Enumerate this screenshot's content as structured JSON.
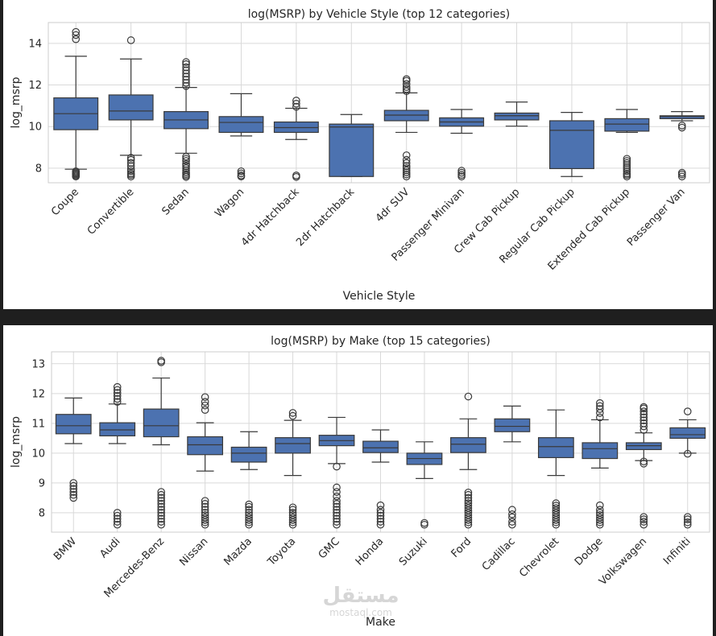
{
  "chart_data": [
    {
      "type": "box",
      "title": "log(MSRP) by Vehicle Style (top 12 categories)",
      "xlabel": "Vehicle Style",
      "ylabel": "log_msrp",
      "ylim": [
        7.3,
        15.0
      ],
      "yticks": [
        8,
        10,
        12,
        14
      ],
      "grid": true,
      "categories": [
        "Coupe",
        "Convertible",
        "Sedan",
        "Wagon",
        "4dr Hatchback",
        "2dr Hatchback",
        "4dr SUV",
        "Passenger Minivan",
        "Crew Cab Pickup",
        "Regular Cab Pickup",
        "Extended Cab Pickup",
        "Passenger Van"
      ],
      "boxes": [
        {
          "whislo": 7.95,
          "q1": 9.85,
          "med": 10.62,
          "q3": 11.38,
          "whishi": 13.38,
          "fliers": [
            7.6,
            7.65,
            7.7,
            7.75,
            7.8,
            7.85,
            14.2,
            14.4,
            14.55
          ]
        },
        {
          "whislo": 8.62,
          "q1": 10.32,
          "med": 10.75,
          "q3": 11.52,
          "whishi": 13.25,
          "fliers": [
            7.6,
            7.68,
            7.75,
            7.85,
            7.95,
            8.1,
            8.25,
            8.4,
            8.5,
            14.15
          ]
        },
        {
          "whislo": 8.72,
          "q1": 9.9,
          "med": 10.32,
          "q3": 10.72,
          "whishi": 11.88,
          "fliers": [
            7.58,
            7.65,
            7.72,
            7.8,
            7.9,
            8.0,
            8.1,
            8.2,
            8.35,
            8.45,
            8.55,
            11.95,
            12.1,
            12.25,
            12.4,
            12.55,
            12.7,
            12.85,
            13.0,
            13.1
          ]
        },
        {
          "whislo": 9.55,
          "q1": 9.72,
          "med": 10.2,
          "q3": 10.48,
          "whishi": 11.58,
          "fliers": [
            7.6,
            7.65,
            7.75,
            7.85
          ]
        },
        {
          "whislo": 9.38,
          "q1": 9.72,
          "med": 9.95,
          "q3": 10.22,
          "whishi": 10.88,
          "fliers": [
            7.58,
            7.65,
            10.95,
            11.1,
            11.25
          ]
        },
        {
          "whislo": 7.6,
          "q1": 7.6,
          "med": 9.98,
          "q3": 10.12,
          "whishi": 10.58,
          "fliers": []
        },
        {
          "whislo": 9.72,
          "q1": 10.28,
          "med": 10.55,
          "q3": 10.78,
          "whishi": 11.62,
          "fliers": [
            7.6,
            7.7,
            7.8,
            7.9,
            8.0,
            8.1,
            8.25,
            8.4,
            8.62,
            11.7,
            11.8,
            11.9,
            12.05,
            12.2,
            12.28
          ]
        },
        {
          "whislo": 9.68,
          "q1": 10.02,
          "med": 10.22,
          "q3": 10.42,
          "whishi": 10.82,
          "fliers": [
            7.6,
            7.68,
            7.78,
            7.88
          ]
        },
        {
          "whislo": 10.02,
          "q1": 10.32,
          "med": 10.52,
          "q3": 10.65,
          "whishi": 11.18,
          "fliers": []
        },
        {
          "whislo": 7.6,
          "q1": 7.98,
          "med": 9.82,
          "q3": 10.28,
          "whishi": 10.68,
          "fliers": []
        },
        {
          "whislo": 9.72,
          "q1": 9.78,
          "med": 10.12,
          "q3": 10.38,
          "whishi": 10.82,
          "fliers": [
            7.6,
            7.68,
            7.75,
            7.85,
            7.95,
            8.05,
            8.15,
            8.25,
            8.35,
            8.45
          ]
        },
        {
          "whislo": 10.28,
          "q1": 10.38,
          "med": 10.48,
          "q3": 10.52,
          "whishi": 10.72,
          "fliers": [
            7.6,
            7.7,
            7.78,
            9.95,
            10.05
          ]
        }
      ]
    },
    {
      "type": "box",
      "title": "log(MSRP) by Make (top 15 categories)",
      "xlabel": "Make",
      "ylabel": "log_msrp",
      "ylim": [
        7.35,
        13.4
      ],
      "yticks": [
        8,
        9,
        10,
        11,
        12,
        13
      ],
      "grid": true,
      "categories": [
        "BMW",
        "Audi",
        "Mercedes-Benz",
        "Nissan",
        "Mazda",
        "Toyota",
        "GMC",
        "Honda",
        "Suzuki",
        "Ford",
        "Cadillac",
        "Chevrolet",
        "Dodge",
        "Volkswagen",
        "Infiniti"
      ],
      "boxes": [
        {
          "whislo": 10.32,
          "q1": 10.65,
          "med": 10.92,
          "q3": 11.3,
          "whishi": 11.85,
          "fliers": [
            8.5,
            8.6,
            8.7,
            8.8,
            8.9,
            9.0
          ]
        },
        {
          "whislo": 10.32,
          "q1": 10.58,
          "med": 10.78,
          "q3": 11.02,
          "whishi": 11.65,
          "fliers": [
            7.6,
            7.7,
            7.8,
            7.9,
            8.0,
            11.72,
            11.82,
            11.92,
            12.02,
            12.12,
            12.22
          ]
        },
        {
          "whislo": 10.28,
          "q1": 10.55,
          "med": 10.92,
          "q3": 11.48,
          "whishi": 12.52,
          "fliers": [
            7.6,
            7.7,
            7.8,
            7.9,
            8.0,
            8.1,
            8.2,
            8.3,
            8.4,
            8.5,
            8.6,
            8.7,
            13.05,
            13.1
          ]
        },
        {
          "whislo": 9.4,
          "q1": 9.95,
          "med": 10.28,
          "q3": 10.55,
          "whishi": 11.02,
          "fliers": [
            7.6,
            7.68,
            7.76,
            7.84,
            7.92,
            8.0,
            8.1,
            8.2,
            8.3,
            8.4,
            11.45,
            11.6,
            11.72,
            11.88
          ]
        },
        {
          "whislo": 9.45,
          "q1": 9.7,
          "med": 10.0,
          "q3": 10.2,
          "whishi": 10.72,
          "fliers": [
            7.6,
            7.68,
            7.76,
            7.84,
            7.92,
            8.0,
            8.1,
            8.2,
            8.28
          ]
        },
        {
          "whislo": 9.25,
          "q1": 10.0,
          "med": 10.32,
          "q3": 10.52,
          "whishi": 11.1,
          "fliers": [
            7.6,
            7.68,
            7.76,
            7.84,
            7.92,
            8.0,
            8.1,
            8.18,
            11.25,
            11.35
          ]
        },
        {
          "whislo": 9.65,
          "q1": 10.25,
          "med": 10.42,
          "q3": 10.6,
          "whishi": 11.2,
          "fliers": [
            7.6,
            7.7,
            7.8,
            7.9,
            8.0,
            8.1,
            8.2,
            8.3,
            8.4,
            8.55,
            8.7,
            8.85,
            9.55
          ]
        },
        {
          "whislo": 9.7,
          "q1": 10.02,
          "med": 10.18,
          "q3": 10.4,
          "whishi": 10.78,
          "fliers": [
            7.6,
            7.7,
            7.8,
            7.9,
            8.0,
            8.1,
            8.25
          ]
        },
        {
          "whislo": 9.15,
          "q1": 9.62,
          "med": 9.82,
          "q3": 10.0,
          "whishi": 10.38,
          "fliers": [
            7.6,
            7.66
          ]
        },
        {
          "whislo": 9.45,
          "q1": 10.02,
          "med": 10.3,
          "q3": 10.52,
          "whishi": 11.15,
          "fliers": [
            7.6,
            7.68,
            7.76,
            7.84,
            7.92,
            8.0,
            8.08,
            8.16,
            8.24,
            8.32,
            8.4,
            8.5,
            8.6,
            8.68,
            11.9
          ]
        },
        {
          "whislo": 10.38,
          "q1": 10.72,
          "med": 10.9,
          "q3": 11.15,
          "whishi": 11.58,
          "fliers": [
            7.6,
            7.7,
            7.85,
            7.95,
            8.1
          ]
        },
        {
          "whislo": 9.25,
          "q1": 9.85,
          "med": 10.22,
          "q3": 10.52,
          "whishi": 11.45,
          "fliers": [
            7.6,
            7.68,
            7.76,
            7.84,
            7.92,
            8.0,
            8.08,
            8.16,
            8.24,
            8.32
          ]
        },
        {
          "whislo": 9.5,
          "q1": 9.82,
          "med": 10.15,
          "q3": 10.35,
          "whishi": 11.12,
          "fliers": [
            7.6,
            7.68,
            7.76,
            7.84,
            7.92,
            8.0,
            8.1,
            8.25,
            11.2,
            11.35,
            11.48,
            11.58,
            11.68
          ]
        },
        {
          "whislo": 9.75,
          "q1": 10.12,
          "med": 10.25,
          "q3": 10.35,
          "whishi": 10.68,
          "fliers": [
            7.6,
            7.7,
            7.78,
            7.86,
            9.65,
            9.72,
            10.78,
            10.9,
            11.0,
            11.1,
            11.2,
            11.3,
            11.4,
            11.5,
            11.55
          ]
        },
        {
          "whislo": 10.0,
          "q1": 10.5,
          "med": 10.62,
          "q3": 10.85,
          "whishi": 11.12,
          "fliers": [
            7.6,
            7.68,
            7.78,
            7.86,
            9.98,
            11.4
          ]
        }
      ]
    }
  ],
  "watermark": {
    "arabic": "مستقل",
    "latin": "mostaql.com"
  }
}
